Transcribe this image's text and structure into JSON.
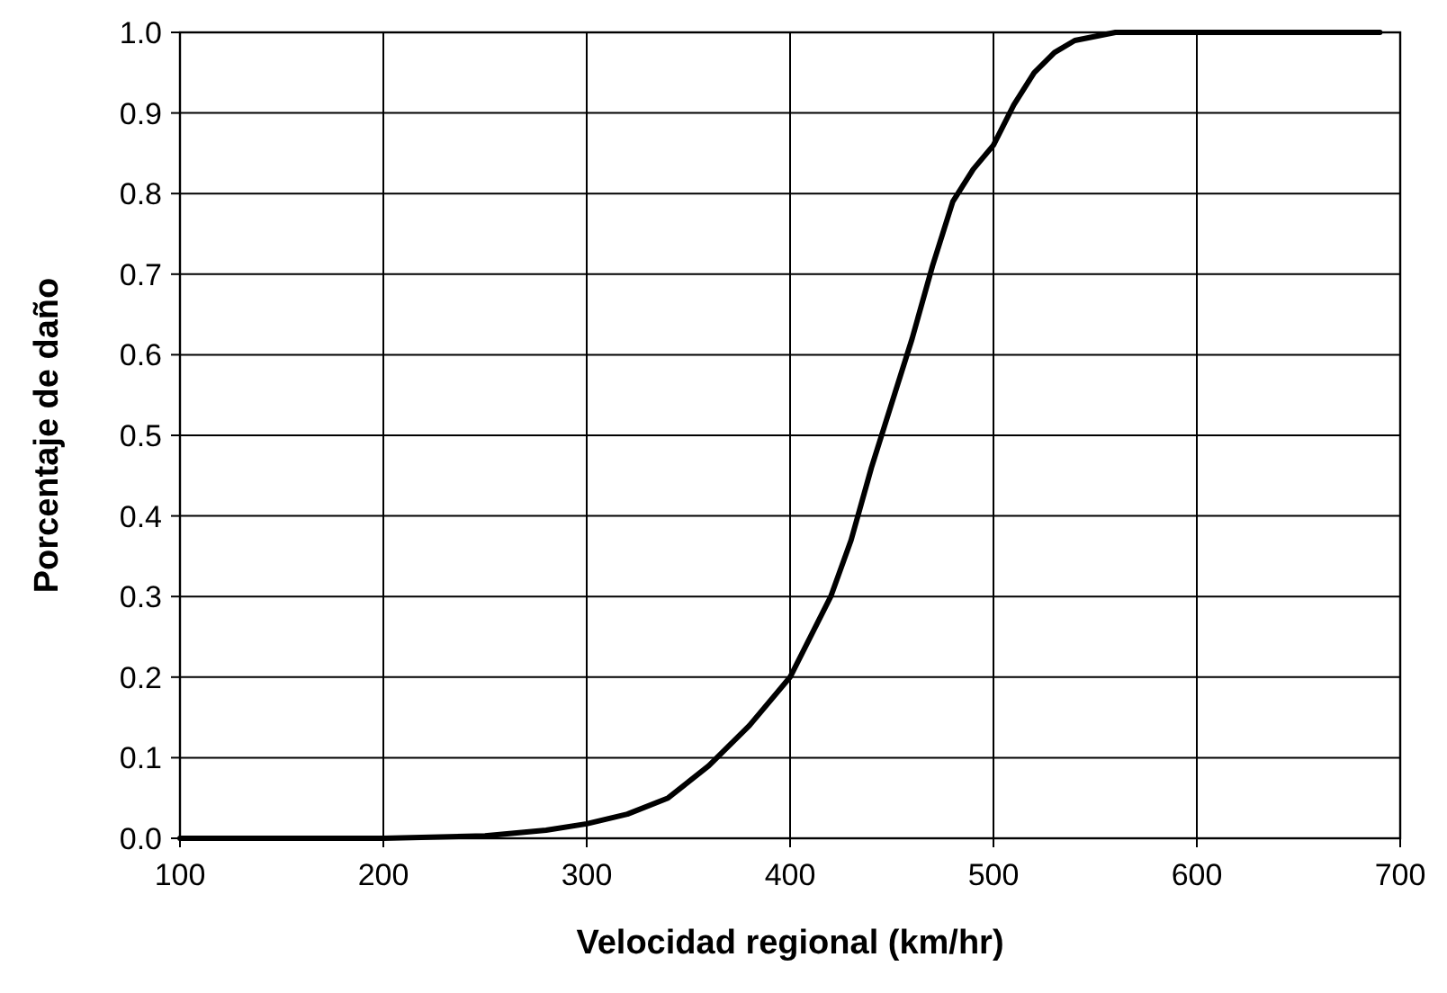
{
  "chart_data": {
    "type": "line",
    "xlabel": "Velocidad regional (km/hr)",
    "ylabel": "Porcentaje de daño",
    "xlim": [
      100,
      700
    ],
    "ylim": [
      0,
      1
    ],
    "xticks": [
      100,
      200,
      300,
      400,
      500,
      600,
      700
    ],
    "yticks": [
      {
        "value": 0,
        "label": "0.0"
      },
      {
        "value": 0.1,
        "label": "0.1"
      },
      {
        "value": 0.2,
        "label": "0.2"
      },
      {
        "value": 0.3,
        "label": "0.3"
      },
      {
        "value": 0.4,
        "label": "0.4"
      },
      {
        "value": 0.5,
        "label": "0.5"
      },
      {
        "value": 0.6,
        "label": "0.6"
      },
      {
        "value": 0.7,
        "label": "0.7"
      },
      {
        "value": 0.8,
        "label": "0.8"
      },
      {
        "value": 0.9,
        "label": "0.9"
      },
      {
        "value": 1,
        "label": "1.0"
      }
    ],
    "grid": true,
    "marker": "none",
    "line_style": "solid",
    "series": [
      {
        "color": "#000000",
        "x": [
          100,
          200,
          250,
          280,
          300,
          320,
          340,
          360,
          380,
          400,
          420,
          430,
          440,
          450,
          460,
          470,
          480,
          490,
          500,
          510,
          520,
          530,
          540,
          560,
          600,
          690
        ],
        "values": [
          0,
          0,
          0.003,
          0.01,
          0.018,
          0.03,
          0.05,
          0.09,
          0.14,
          0.2,
          0.3,
          0.37,
          0.46,
          0.54,
          0.62,
          0.71,
          0.79,
          0.83,
          0.86,
          0.91,
          0.95,
          0.975,
          0.99,
          1,
          1,
          1
        ]
      }
    ]
  }
}
